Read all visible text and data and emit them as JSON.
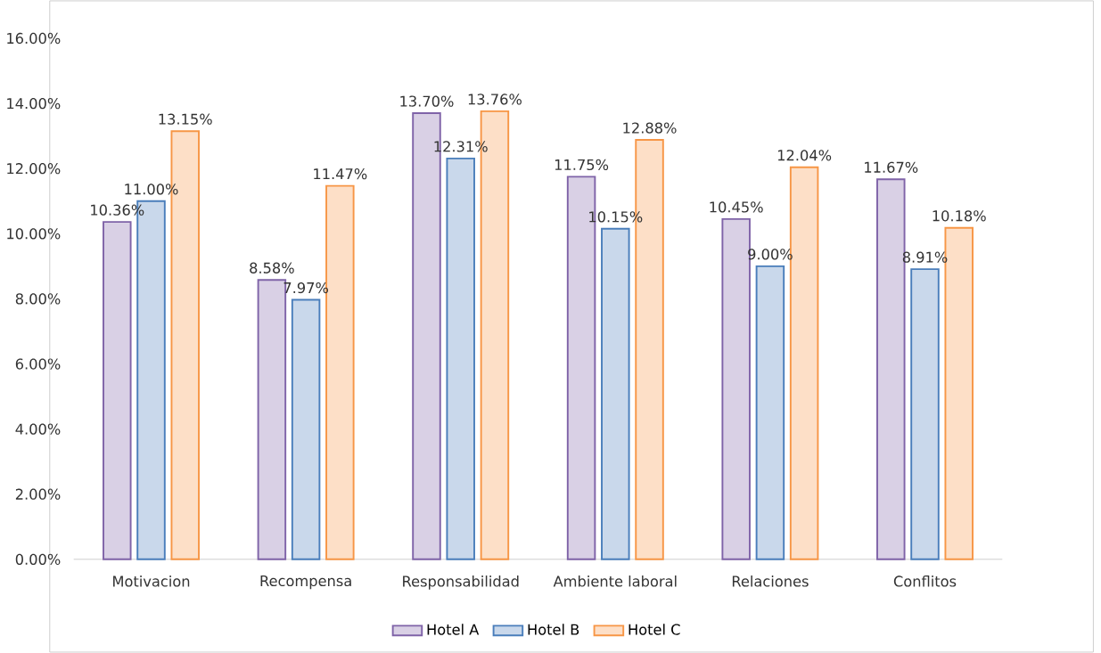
{
  "chart_data": {
    "type": "bar",
    "categories": [
      "Motivacion",
      "Recompensa",
      "Responsabilidad",
      "Ambiente laboral",
      "Relaciones",
      "Conflitos"
    ],
    "series": [
      {
        "name": "Hotel A",
        "color": "#7f63a8",
        "values": [
          10.36,
          8.58,
          13.7,
          11.75,
          10.45,
          11.67
        ],
        "value_labels": [
          "10.36%",
          "8.58%",
          "13.70%",
          "11.75%",
          "10.45%",
          "11.67%"
        ]
      },
      {
        "name": "Hotel B",
        "color": "#4a7ebb",
        "values": [
          11.0,
          7.97,
          12.31,
          10.15,
          9.0,
          8.91
        ],
        "value_labels": [
          "11.00%",
          "7.97%",
          "12.31%",
          "10.15%",
          "9.00%",
          "8.91%"
        ]
      },
      {
        "name": "Hotel C",
        "color": "#f79646",
        "values": [
          13.15,
          11.47,
          13.76,
          12.88,
          12.04,
          10.18
        ],
        "value_labels": [
          "13.15%",
          "11.47%",
          "13.76%",
          "12.88%",
          "12.04%",
          "10.18%"
        ]
      }
    ],
    "ylim": [
      0,
      16
    ],
    "yticks": [
      {
        "value": 0,
        "label": "0.00%"
      },
      {
        "value": 2,
        "label": "2.00%"
      },
      {
        "value": 4,
        "label": "4.00%"
      },
      {
        "value": 6,
        "label": "6.00%"
      },
      {
        "value": 8,
        "label": "8.00%"
      },
      {
        "value": 10,
        "label": "10.00%"
      },
      {
        "value": 12,
        "label": "12.00%"
      },
      {
        "value": 14,
        "label": "14.00%"
      },
      {
        "value": 16,
        "label": "16.00%"
      }
    ],
    "legend": "bottom"
  }
}
